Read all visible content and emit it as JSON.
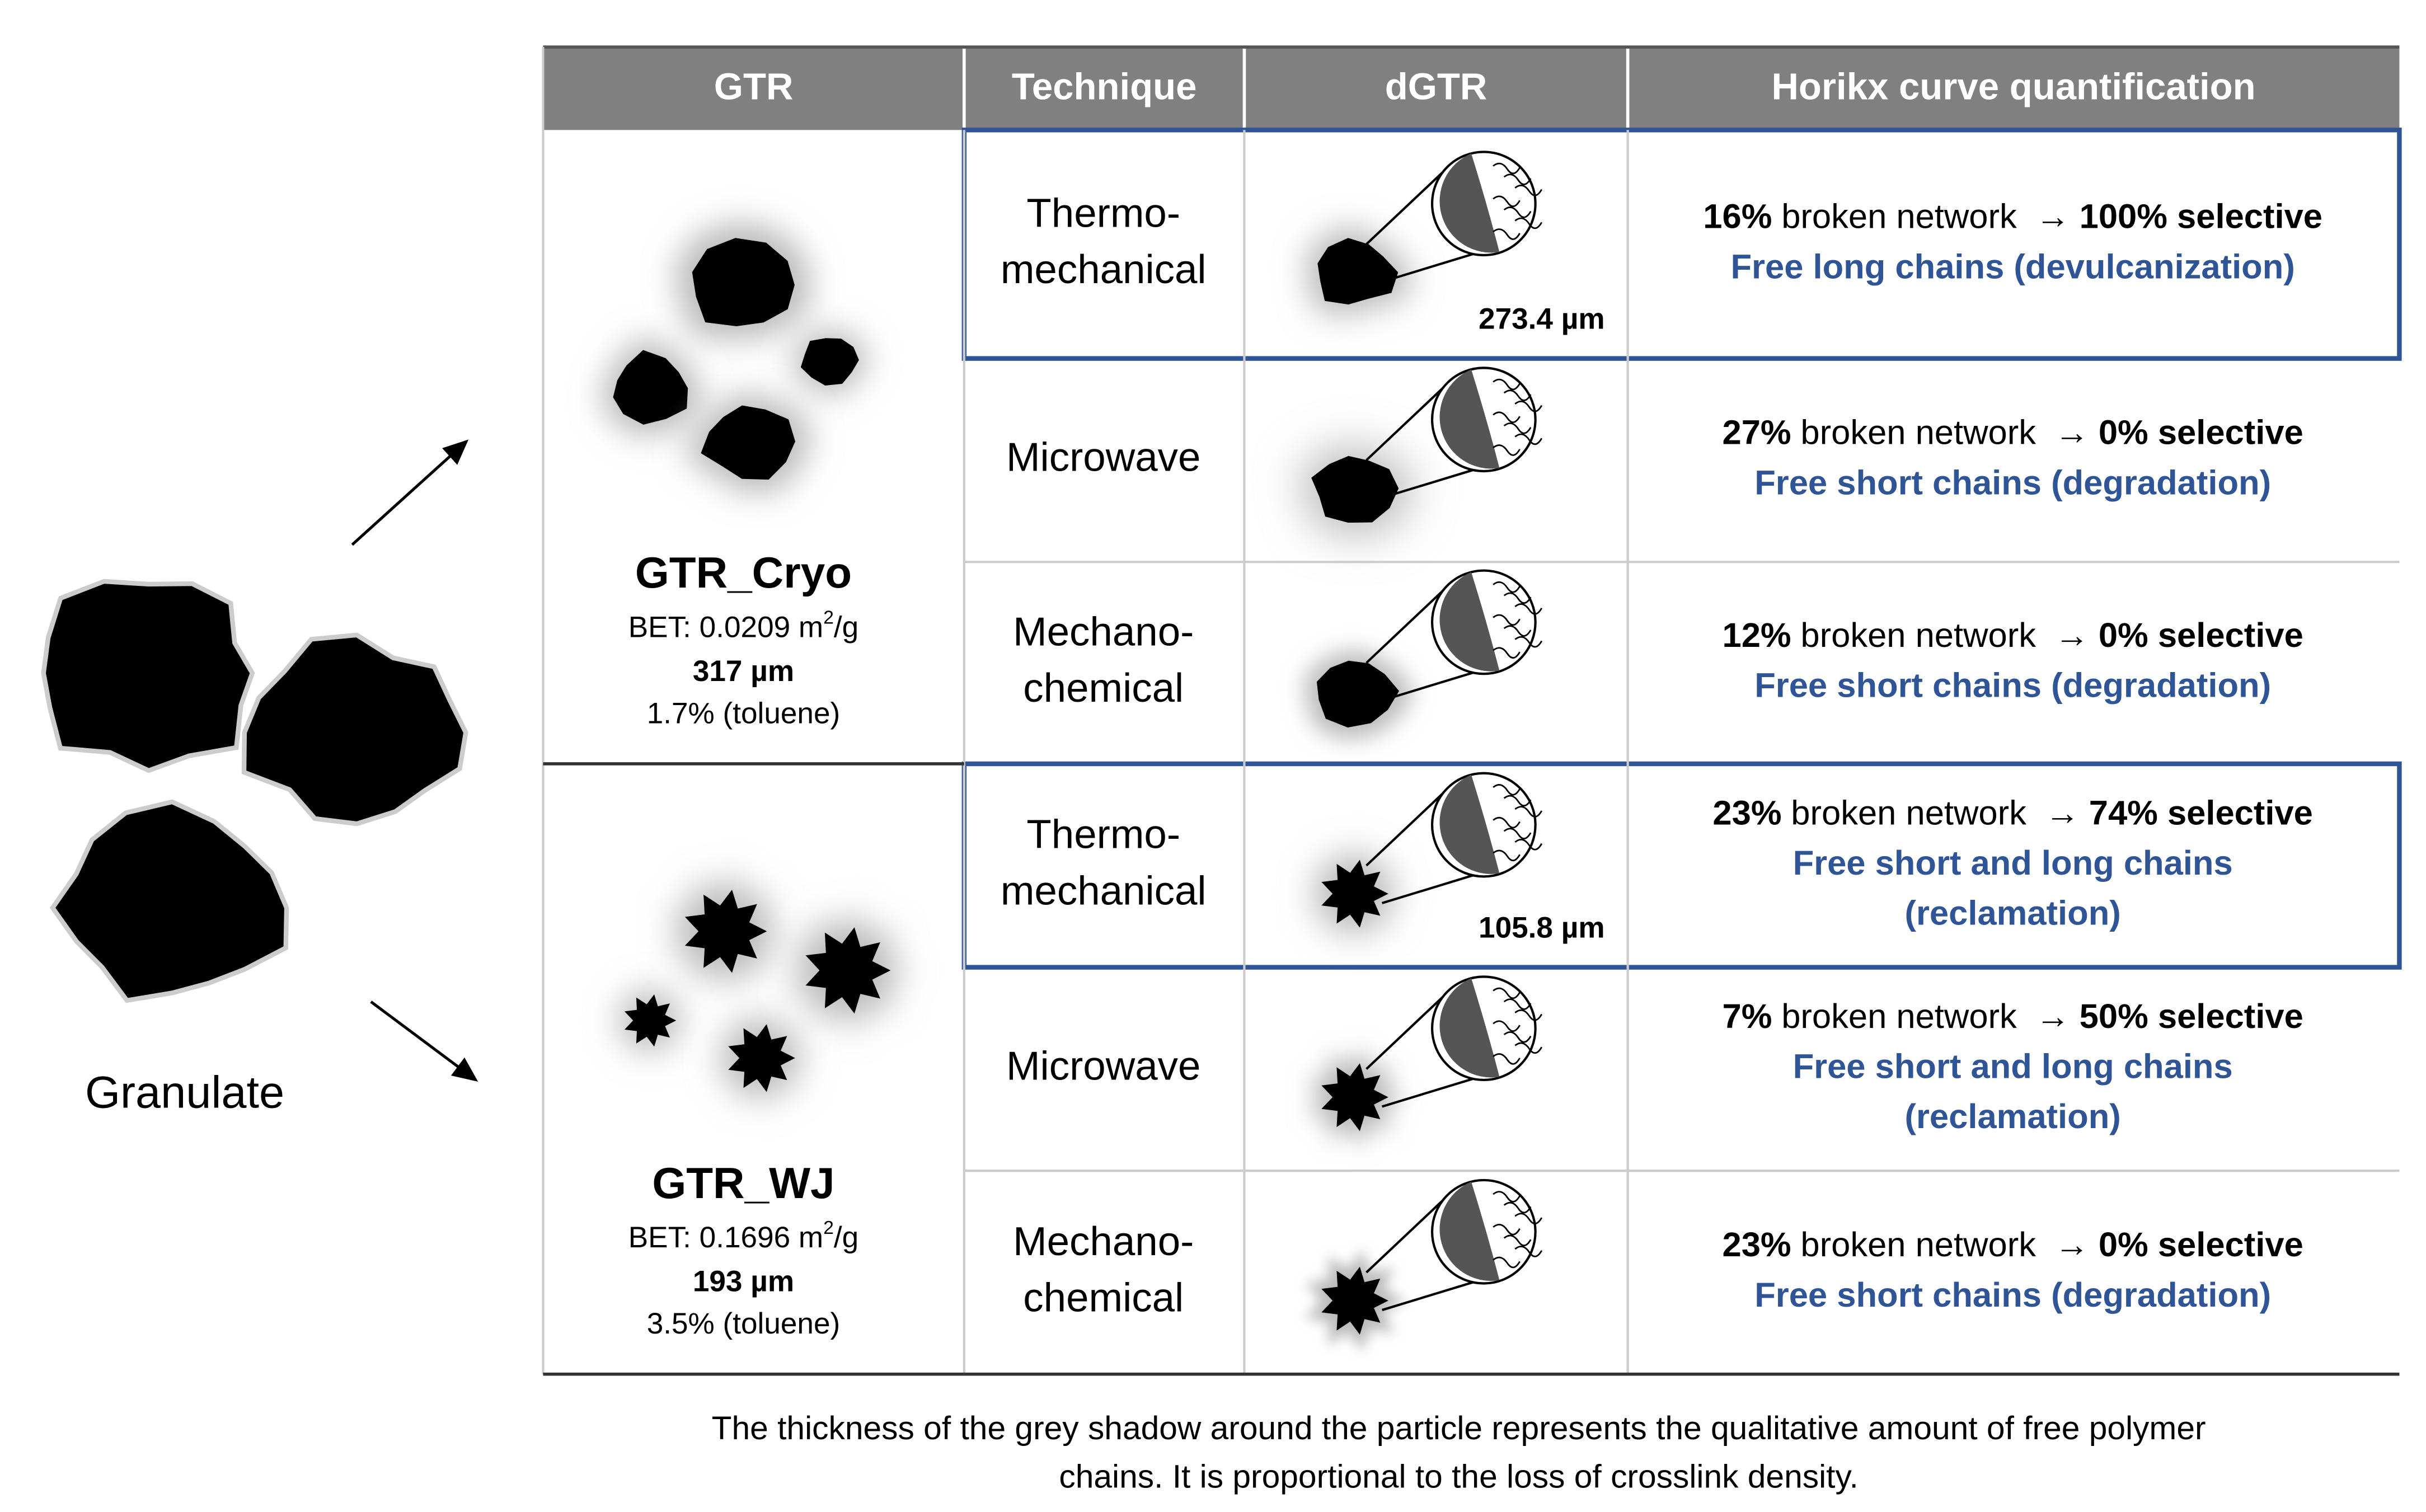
{
  "granulate": "Granulate",
  "header": [
    "GTR",
    "Technique",
    "dGTR",
    "Horikx curve quantification"
  ],
  "groups": [
    {
      "name": "GTR_Cryo",
      "bet": {
        "prefix": "BET: 0.0209 m",
        "sup": "2",
        "suffix": "/g"
      },
      "size": "317 µm",
      "solvent": "1.7% (toluene)",
      "rows": [
        {
          "technique": [
            "Thermo-",
            "mechanical"
          ],
          "size": "273.4 µm",
          "broken": "16%",
          "broken_text": "broken network",
          "arrow": "→",
          "selective": "100% selective",
          "chains": [
            "Free long chains (devulcanization)"
          ]
        },
        {
          "technique": [
            "Microwave"
          ],
          "broken": "27%",
          "broken_text": "broken network",
          "arrow": "→",
          "selective": "0% selective",
          "chains": [
            "Free short chains (degradation)"
          ]
        },
        {
          "technique": [
            "Mechano-",
            "chemical"
          ],
          "broken": "12%",
          "broken_text": "broken network",
          "arrow": "→",
          "selective": "0% selective",
          "chains": [
            "Free short chains (degradation)"
          ]
        }
      ]
    },
    {
      "name": "GTR_WJ",
      "bet": {
        "prefix": "BET: 0.1696 m",
        "sup": "2",
        "suffix": "/g"
      },
      "size": "193 µm",
      "solvent": "3.5% (toluene)",
      "rows": [
        {
          "technique": [
            "Thermo-",
            "mechanical"
          ],
          "size": "105.8 µm",
          "broken": "23%",
          "broken_text": "broken network",
          "arrow": "→",
          "selective": "74% selective",
          "chains": [
            "Free short and long chains",
            "(reclamation)"
          ]
        },
        {
          "technique": [
            "Microwave"
          ],
          "broken": "7%",
          "broken_text": "broken network",
          "arrow": "→",
          "selective": "50% selective",
          "chains": [
            "Free short and long chains",
            "(reclamation)"
          ]
        },
        {
          "technique": [
            "Mechano-",
            "chemical"
          ],
          "broken": "23%",
          "broken_text": "broken network",
          "arrow": "→",
          "selective": "0% selective",
          "chains": [
            "Free short chains (degradation)"
          ]
        }
      ]
    }
  ],
  "footnote": [
    "The thickness of the grey shadow around the particle represents the qualitative amount of free polymer",
    "chains. It is proportional to the loss of crosslink density."
  ]
}
